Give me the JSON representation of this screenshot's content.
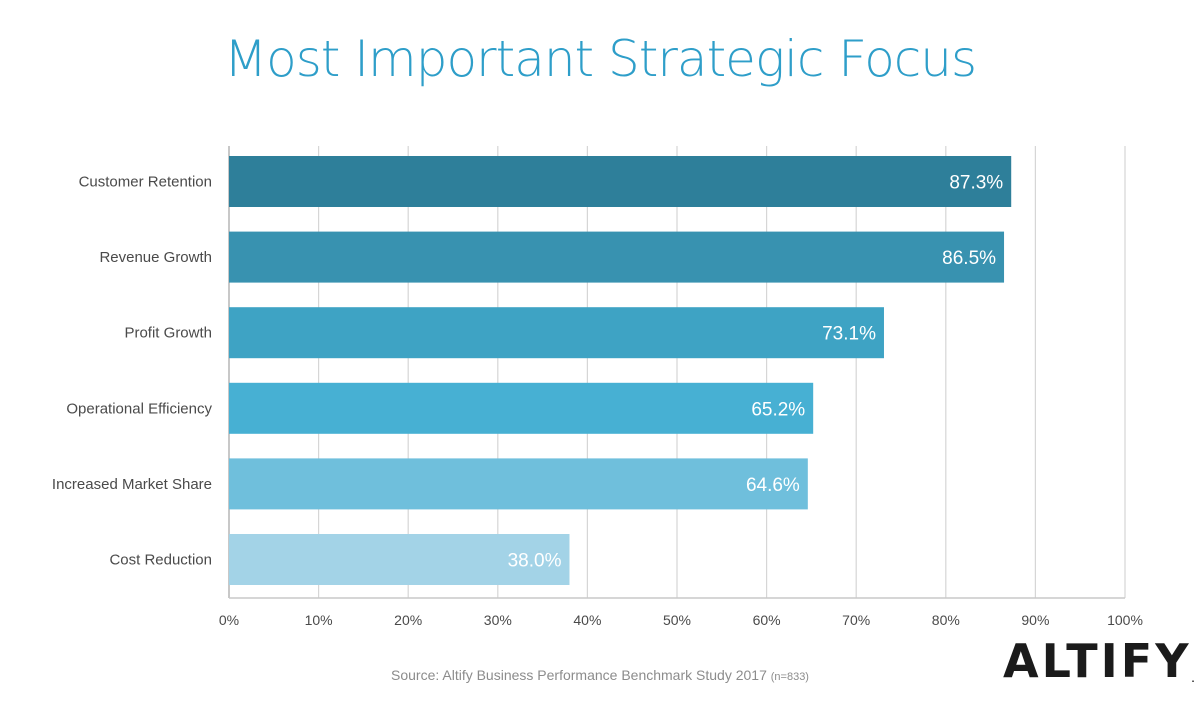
{
  "title": "Most Important Strategic Focus",
  "source_text": "Source: Altify Business Performance Benchmark Study 2017",
  "source_n": "(n=833)",
  "logo_text": "ALTIFY",
  "logo_tm": ".",
  "chart_data": {
    "type": "bar",
    "orientation": "horizontal",
    "title": "Most Important Strategic Focus",
    "categories": [
      "Customer Retention",
      "Revenue Growth",
      "Profit Growth",
      "Operational Efficiency",
      "Increased Market Share",
      "Cost Reduction"
    ],
    "values": [
      87.3,
      86.5,
      73.1,
      65.2,
      64.6,
      38.0
    ],
    "value_labels": [
      "87.3%",
      "86.5%",
      "73.1%",
      "65.2%",
      "64.6%",
      "38.0%"
    ],
    "bar_colors": [
      "#2e7f9a",
      "#3892b0",
      "#3ea3c4",
      "#47b0d3",
      "#6fbfdc",
      "#a3d3e7"
    ],
    "xlim": [
      0,
      100
    ],
    "xticks": [
      "0%",
      "10%",
      "20%",
      "30%",
      "40%",
      "50%",
      "60%",
      "70%",
      "80%",
      "90%",
      "100%"
    ],
    "grid": true,
    "xlabel": "",
    "ylabel": ""
  }
}
